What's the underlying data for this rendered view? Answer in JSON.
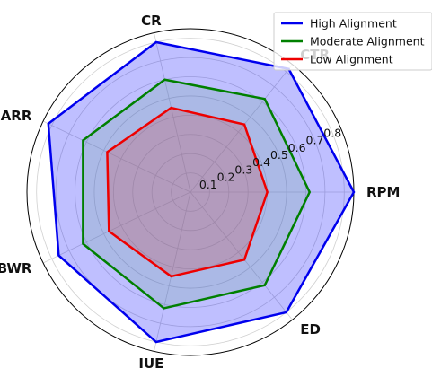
{
  "chart_data": {
    "type": "radar",
    "axes": [
      "RPM",
      "CTR",
      "CR",
      "ARR",
      "BWR",
      "IUE",
      "ED"
    ],
    "radial_ticks": [
      "0.1",
      "0.2",
      "0.3",
      "0.4",
      "0.5",
      "0.6",
      "0.7",
      "0.8"
    ],
    "rlim": [
      0,
      0.85
    ],
    "grid": true,
    "legend_position": "top-right",
    "series": [
      {
        "name": "High Alignment",
        "color": "#0000ee",
        "fill": "#0000ff",
        "values": [
          0.85,
          0.82,
          0.8,
          0.82,
          0.76,
          0.8,
          0.8
        ]
      },
      {
        "name": "Moderate Alignment",
        "color": "#008000",
        "fill": "#6fa89a",
        "values": [
          0.62,
          0.62,
          0.6,
          0.62,
          0.62,
          0.62,
          0.62
        ]
      },
      {
        "name": "Low Alignment",
        "color": "#ee0000",
        "fill": "#cc4444",
        "values": [
          0.4,
          0.45,
          0.45,
          0.48,
          0.47,
          0.45,
          0.45
        ]
      }
    ]
  }
}
